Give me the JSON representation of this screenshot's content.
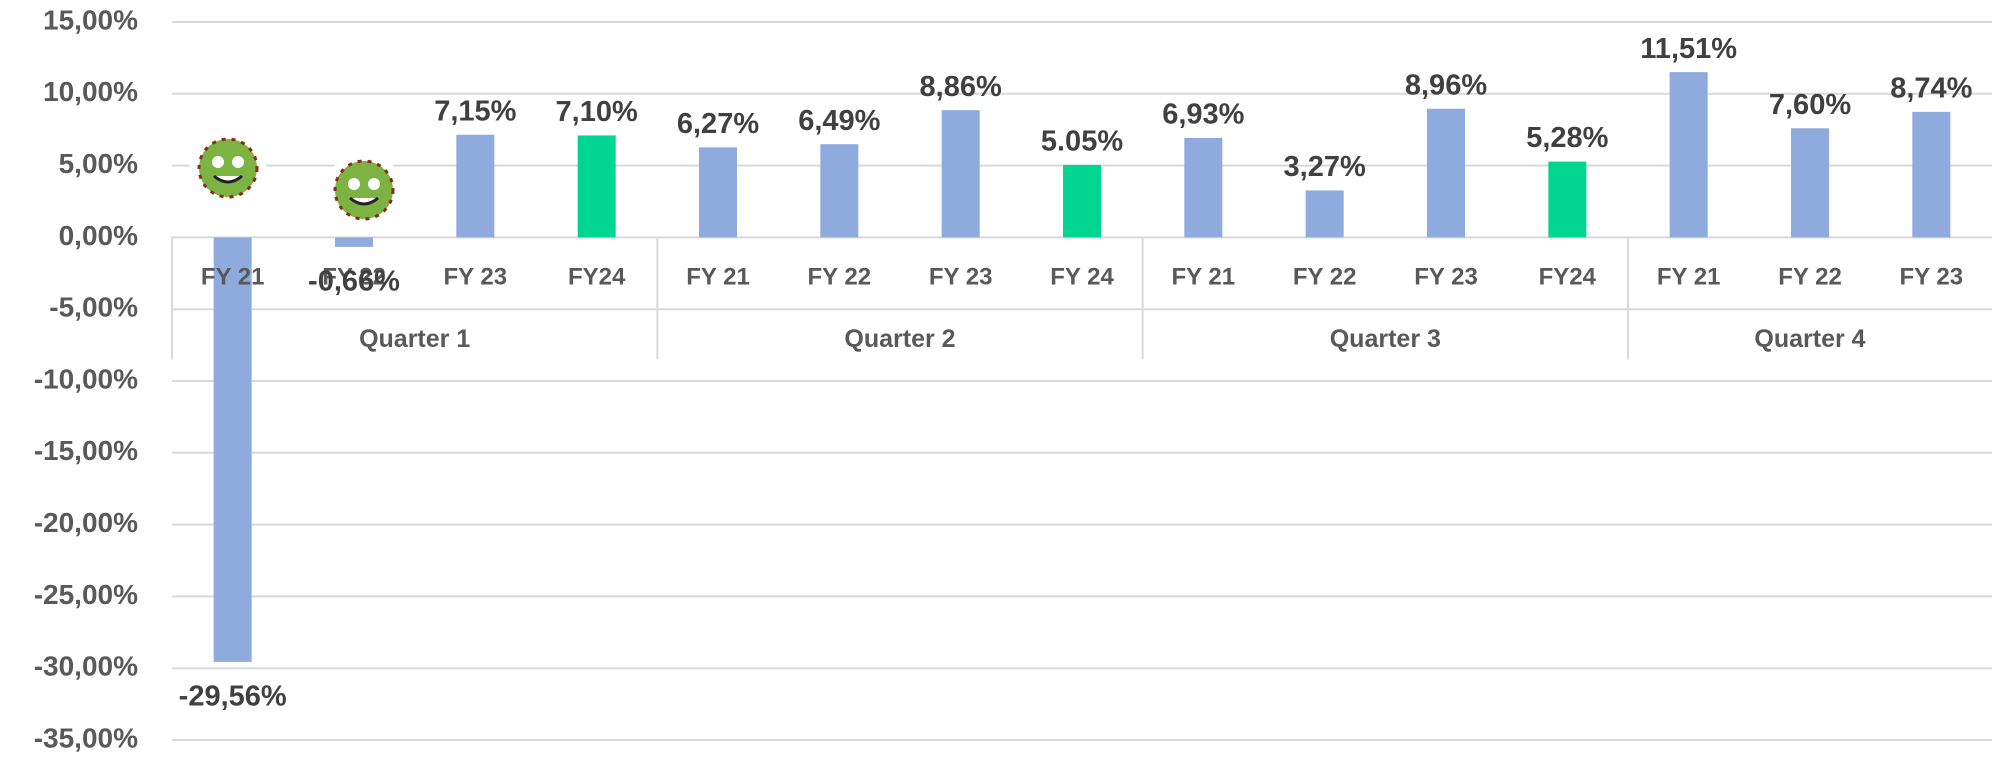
{
  "chart_data": {
    "type": "bar",
    "groups": [
      {
        "name": "Quarter 1",
        "categories": [
          "FY 21",
          "FY 22",
          "FY 23",
          "FY24"
        ],
        "values": [
          -29.56,
          -0.66,
          7.15,
          7.1
        ],
        "value_labels": [
          "-29,56%",
          "-0,66%",
          "7,15%",
          "7,10%"
        ],
        "colors": [
          "#8faadc",
          "#8faadc",
          "#8faadc",
          "#00d68f"
        ]
      },
      {
        "name": "Quarter 2",
        "categories": [
          "FY 21",
          "FY 22",
          "FY 23",
          "FY 24"
        ],
        "values": [
          6.27,
          6.49,
          8.86,
          5.05
        ],
        "value_labels": [
          "6,27%",
          "6,49%",
          "8,86%",
          "5.05%"
        ],
        "colors": [
          "#8faadc",
          "#8faadc",
          "#8faadc",
          "#00d68f"
        ]
      },
      {
        "name": "Quarter 3",
        "categories": [
          "FY 21",
          "FY 22",
          "FY 23",
          "FY24"
        ],
        "values": [
          6.93,
          3.27,
          8.96,
          5.28
        ],
        "value_labels": [
          "6,93%",
          "3,27%",
          "8,96%",
          "5,28%"
        ],
        "colors": [
          "#8faadc",
          "#8faadc",
          "#8faadc",
          "#00d68f"
        ]
      },
      {
        "name": "Quarter 4",
        "categories": [
          "FY 21",
          "FY 22",
          "FY 23"
        ],
        "values": [
          11.51,
          7.6,
          8.74
        ],
        "value_labels": [
          "11,51%",
          "7,60%",
          "8,74%"
        ],
        "colors": [
          "#8faadc",
          "#8faadc",
          "#8faadc"
        ]
      }
    ],
    "ylim": [
      -35,
      15
    ],
    "yticks": [
      {
        "value": 15,
        "label": "15,00%"
      },
      {
        "value": 10,
        "label": "10,00%"
      },
      {
        "value": 5,
        "label": "5,00%"
      },
      {
        "value": 0,
        "label": "0,00%"
      },
      {
        "value": -5,
        "label": "-5,00%"
      },
      {
        "value": -10,
        "label": "-10,00%"
      },
      {
        "value": -15,
        "label": "-15,00%"
      },
      {
        "value": -20,
        "label": "-20,00%"
      },
      {
        "value": -25,
        "label": "-25,00%"
      },
      {
        "value": -30,
        "label": "-30,00%"
      },
      {
        "value": -35,
        "label": "-35,00%"
      }
    ],
    "grid": true
  }
}
